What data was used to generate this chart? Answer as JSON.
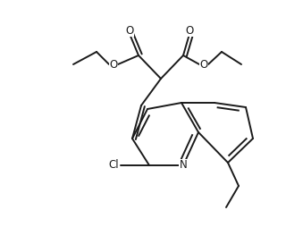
{
  "bg_color": "#ffffff",
  "line_color": "#1a1a1a",
  "line_width": 1.4,
  "font_size": 8.5,
  "figsize": [
    3.2,
    2.54
  ],
  "dpi": 100,
  "xlim": [
    0,
    320
  ],
  "ylim": [
    0,
    254
  ]
}
